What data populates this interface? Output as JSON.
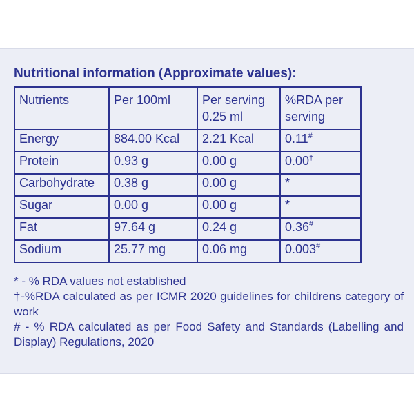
{
  "title": "Nutritional information (Approximate values):",
  "table": {
    "header": [
      "Nutrients",
      "Per 100ml",
      "Per serving 0.25 ml",
      "%RDA per serving"
    ],
    "rows": [
      [
        {
          "text": "Energy"
        },
        {
          "text": "884.00 Kcal"
        },
        {
          "text": "2.21 Kcal"
        },
        {
          "text": "0.11",
          "sup": "#"
        }
      ],
      [
        {
          "text": "Protein"
        },
        {
          "text": "0.93 g"
        },
        {
          "text": "0.00 g"
        },
        {
          "text": "0.00",
          "sup": "†"
        }
      ],
      [
        {
          "text": "Carbohydrate"
        },
        {
          "text": "0.38 g"
        },
        {
          "text": "0.00 g"
        },
        {
          "text": "*"
        }
      ],
      [
        {
          "text": "Sugar"
        },
        {
          "text": "0.00 g"
        },
        {
          "text": "0.00 g"
        },
        {
          "text": "*"
        }
      ],
      [
        {
          "text": "Fat"
        },
        {
          "text": "97.64 g"
        },
        {
          "text": "0.24 g"
        },
        {
          "text": "0.36",
          "sup": "#"
        }
      ],
      [
        {
          "text": "Sodium"
        },
        {
          "text": "25.77 mg"
        },
        {
          "text": "0.06 mg"
        },
        {
          "text": "0.003",
          "sup": "#"
        }
      ]
    ]
  },
  "notes": [
    "* - % RDA values not established",
    "†-%RDA calculated as per ICMR 2020 guidelines for childrens category of work",
    "# - % RDA calculated as per Food Safety and Standards (Labelling and Display) Regulations, 2020"
  ]
}
